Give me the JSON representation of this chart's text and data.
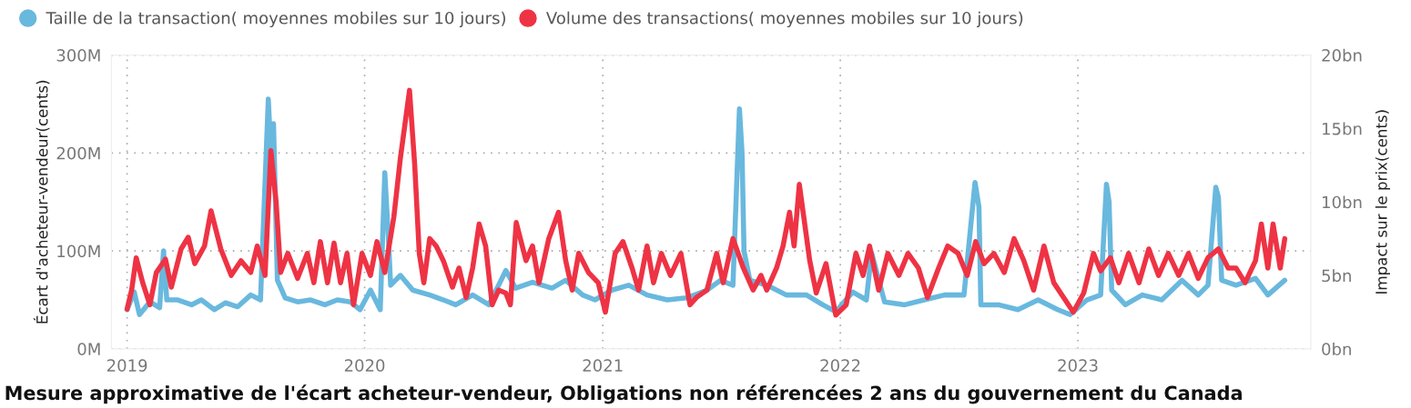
{
  "chart_data": {
    "type": "line",
    "title": "Mesure approximative de l'écart acheteur-vendeur, Obligations non référencées 2 ans du gouvernement du Canada",
    "ylabel": "Écart d'acheteur-vendeur(cents)",
    "y2label": "Impact sur le prix(cents)",
    "legend": "top left",
    "grid": true,
    "line_style": "solid",
    "marker": "none",
    "xlim": [
      "2018-12-08",
      "2023-12-25"
    ],
    "xticks": [
      "2019",
      "2020",
      "2021",
      "2022",
      "2023"
    ],
    "ylim": [
      0,
      300
    ],
    "yticks": [
      {
        "value": 0,
        "label": "0M"
      },
      {
        "value": 100,
        "label": "100M"
      },
      {
        "value": 200,
        "label": "200M"
      },
      {
        "value": 300,
        "label": "300M"
      }
    ],
    "y2lim": [
      0,
      20
    ],
    "y2ticks": [
      {
        "value": 0,
        "label": "0bn"
      },
      {
        "value": 5,
        "label": "5bn"
      },
      {
        "value": 10,
        "label": "10bn"
      },
      {
        "value": 15,
        "label": "15bn"
      },
      {
        "value": 20,
        "label": "20bn"
      }
    ],
    "series": [
      {
        "name": "Taille de la transaction( moyennes mobiles sur 10 jours)",
        "color": "#69b8de",
        "x": [
          "2019-01-01",
          "2019-01-12",
          "2019-01-20",
          "2019-02-05",
          "2019-02-20",
          "2019-02-26",
          "2019-03-03",
          "2019-03-20",
          "2019-04-10",
          "2019-04-25",
          "2019-05-15",
          "2019-06-01",
          "2019-06-20",
          "2019-07-10",
          "2019-07-25",
          "2019-08-06",
          "2019-08-10",
          "2019-08-14",
          "2019-08-20",
          "2019-09-01",
          "2019-09-20",
          "2019-10-10",
          "2019-11-01",
          "2019-11-20",
          "2019-12-10",
          "2019-12-25",
          "2020-01-10",
          "2020-01-25",
          "2020-02-01",
          "2020-02-06",
          "2020-02-10",
          "2020-02-25",
          "2020-03-15",
          "2020-04-10",
          "2020-05-01",
          "2020-05-20",
          "2020-06-15",
          "2020-07-10",
          "2020-08-05",
          "2020-08-20",
          "2020-09-15",
          "2020-10-15",
          "2020-11-05",
          "2020-12-01",
          "2020-12-20",
          "2021-01-15",
          "2021-02-10",
          "2021-03-10",
          "2021-04-10",
          "2021-05-10",
          "2021-06-10",
          "2021-07-01",
          "2021-07-20",
          "2021-07-30",
          "2021-08-03",
          "2021-08-06",
          "2021-08-15",
          "2021-09-10",
          "2021-10-10",
          "2021-11-10",
          "2021-12-05",
          "2021-12-25",
          "2022-01-20",
          "2022-02-10",
          "2022-02-18",
          "2022-03-10",
          "2022-04-10",
          "2022-05-10",
          "2022-06-10",
          "2022-07-10",
          "2022-07-27",
          "2022-08-02",
          "2022-08-05",
          "2022-09-01",
          "2022-10-01",
          "2022-11-01",
          "2022-12-01",
          "2022-12-20",
          "2023-01-15",
          "2023-02-05",
          "2023-02-14",
          "2023-02-18",
          "2023-02-22",
          "2023-03-15",
          "2023-04-10",
          "2023-05-10",
          "2023-06-10",
          "2023-07-05",
          "2023-07-20",
          "2023-08-01",
          "2023-08-05",
          "2023-08-10",
          "2023-09-01",
          "2023-10-01",
          "2023-10-20",
          "2023-11-15"
        ],
        "values": [
          40,
          58,
          35,
          48,
          42,
          100,
          50,
          50,
          45,
          50,
          40,
          47,
          43,
          55,
          50,
          255,
          200,
          230,
          70,
          52,
          48,
          50,
          45,
          50,
          48,
          40,
          60,
          40,
          180,
          120,
          65,
          75,
          60,
          55,
          50,
          45,
          55,
          45,
          80,
          62,
          68,
          62,
          70,
          55,
          50,
          60,
          65,
          55,
          50,
          52,
          60,
          70,
          65,
          245,
          200,
          100,
          70,
          65,
          55,
          55,
          45,
          38,
          58,
          50,
          98,
          48,
          45,
          50,
          55,
          55,
          170,
          145,
          45,
          45,
          40,
          50,
          40,
          35,
          50,
          55,
          168,
          150,
          60,
          45,
          55,
          50,
          70,
          55,
          65,
          165,
          155,
          70,
          65,
          72,
          55,
          70
        ]
      },
      {
        "name": "Volume des transactions( moyennes mobiles sur 10 jours)",
        "color": "#ee3344",
        "axis": "y2",
        "x": [
          "2019-01-01",
          "2019-01-08",
          "2019-01-15",
          "2019-01-25",
          "2019-02-05",
          "2019-02-15",
          "2019-03-01",
          "2019-03-10",
          "2019-03-25",
          "2019-04-05",
          "2019-04-15",
          "2019-04-30",
          "2019-05-10",
          "2019-05-25",
          "2019-06-10",
          "2019-06-25",
          "2019-07-10",
          "2019-07-20",
          "2019-08-01",
          "2019-08-10",
          "2019-08-18",
          "2019-08-25",
          "2019-09-05",
          "2019-09-20",
          "2019-10-05",
          "2019-10-15",
          "2019-10-25",
          "2019-11-05",
          "2019-11-15",
          "2019-11-25",
          "2019-12-05",
          "2019-12-15",
          "2019-12-28",
          "2020-01-10",
          "2020-01-20",
          "2020-02-01",
          "2020-02-15",
          "2020-02-25",
          "2020-03-10",
          "2020-03-18",
          "2020-03-25",
          "2020-04-01",
          "2020-04-10",
          "2020-04-20",
          "2020-05-01",
          "2020-05-15",
          "2020-05-25",
          "2020-06-05",
          "2020-06-15",
          "2020-06-25",
          "2020-07-05",
          "2020-07-15",
          "2020-07-25",
          "2020-08-05",
          "2020-08-12",
          "2020-08-21",
          "2020-09-05",
          "2020-09-15",
          "2020-09-25",
          "2020-10-10",
          "2020-10-25",
          "2020-11-05",
          "2020-11-15",
          "2020-11-25",
          "2020-12-10",
          "2020-12-25",
          "2021-01-05",
          "2021-01-20",
          "2021-02-01",
          "2021-02-15",
          "2021-02-25",
          "2021-03-10",
          "2021-03-20",
          "2021-04-01",
          "2021-04-15",
          "2021-05-01",
          "2021-05-15",
          "2021-05-25",
          "2021-06-10",
          "2021-06-25",
          "2021-07-05",
          "2021-07-20",
          "2021-08-05",
          "2021-08-20",
          "2021-09-01",
          "2021-09-10",
          "2021-09-25",
          "2021-10-05",
          "2021-10-15",
          "2021-10-22",
          "2021-10-30",
          "2021-11-15",
          "2021-11-25",
          "2021-12-10",
          "2021-12-25",
          "2022-01-10",
          "2022-01-25",
          "2022-02-05",
          "2022-02-15",
          "2022-03-01",
          "2022-03-15",
          "2022-04-01",
          "2022-04-15",
          "2022-05-01",
          "2022-05-15",
          "2022-06-01",
          "2022-06-15",
          "2022-07-01",
          "2022-07-15",
          "2022-07-28",
          "2022-08-10",
          "2022-08-25",
          "2022-09-10",
          "2022-09-25",
          "2022-10-10",
          "2022-10-25",
          "2022-11-10",
          "2022-11-25",
          "2022-12-10",
          "2022-12-25",
          "2023-01-10",
          "2023-01-25",
          "2023-02-05",
          "2023-02-20",
          "2023-03-05",
          "2023-03-20",
          "2023-04-05",
          "2023-04-20",
          "2023-05-05",
          "2023-05-20",
          "2023-06-05",
          "2023-06-20",
          "2023-07-05",
          "2023-07-20",
          "2023-08-05",
          "2023-08-20",
          "2023-09-01",
          "2023-09-15",
          "2023-10-01",
          "2023-10-10",
          "2023-10-20",
          "2023-10-28",
          "2023-11-08",
          "2023-11-15"
        ],
        "values": [
          2.7,
          4.0,
          6.2,
          4.5,
          3.0,
          5.2,
          6.1,
          4.2,
          6.8,
          7.6,
          5.8,
          7.0,
          9.4,
          6.8,
          5.0,
          6.0,
          5.2,
          7.0,
          5.0,
          13.5,
          10.0,
          5.2,
          6.5,
          4.8,
          6.5,
          4.5,
          7.3,
          4.5,
          7.2,
          4.5,
          6.5,
          3.0,
          6.5,
          5.0,
          7.3,
          5.2,
          9.0,
          13.0,
          17.6,
          12.5,
          6.5,
          4.5,
          7.5,
          7.0,
          6.0,
          4.2,
          5.5,
          3.5,
          5.5,
          8.5,
          7.0,
          3.0,
          4.0,
          3.8,
          3.0,
          8.6,
          6.0,
          7.0,
          4.5,
          7.5,
          9.3,
          6.0,
          4.0,
          6.5,
          5.2,
          4.5,
          2.5,
          6.5,
          7.3,
          5.5,
          4.0,
          7.0,
          4.5,
          6.5,
          5.0,
          6.5,
          3.0,
          3.5,
          4.0,
          6.5,
          4.5,
          7.5,
          5.5,
          4.0,
          5.0,
          4.0,
          5.5,
          7.0,
          9.3,
          7.0,
          11.2,
          6.0,
          3.8,
          5.8,
          2.3,
          3.0,
          6.5,
          5.0,
          7.0,
          4.0,
          6.5,
          5.0,
          6.5,
          5.5,
          3.5,
          5.5,
          7.0,
          6.5,
          5.0,
          7.3,
          5.8,
          6.5,
          5.2,
          7.5,
          6.0,
          4.0,
          7.0,
          4.5,
          3.5,
          2.5,
          3.8,
          6.5,
          5.3,
          6.2,
          4.5,
          6.5,
          4.5,
          6.8,
          5.0,
          6.5,
          5.0,
          6.5,
          4.8,
          6.2,
          6.8,
          5.5,
          5.5,
          4.5,
          6.0,
          8.5,
          5.5,
          8.5,
          5.5,
          7.5
        ]
      }
    ]
  }
}
